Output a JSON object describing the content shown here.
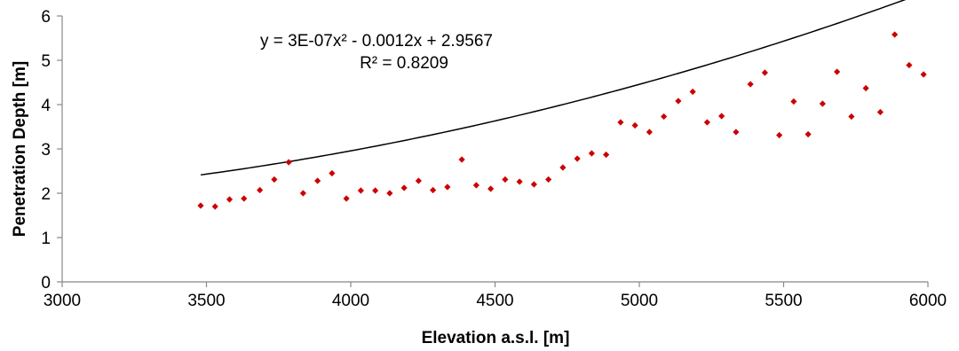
{
  "chart_data": {
    "type": "scatter",
    "xlabel": "Elevation a.s.l. [m]",
    "ylabel": "Penetration Depth [m]",
    "xlim": [
      3000,
      6000
    ],
    "ylim": [
      0,
      6
    ],
    "x_ticks": [
      "3000",
      "3500",
      "4000",
      "4500",
      "5000",
      "5500",
      "6000"
    ],
    "y_ticks": [
      "0",
      "1",
      "2",
      "3",
      "4",
      "5",
      "6"
    ],
    "grid": false,
    "legend": "none",
    "marker_color": "#cc0000",
    "trendline": {
      "type": "polynomial",
      "order": 2,
      "coefficients": [
        3e-07,
        -0.0012,
        2.9567
      ],
      "x_range": [
        3480,
        6000
      ],
      "color": "#000000",
      "equation_label": "y = 3E-07x² - 0.0012x + 2.9567",
      "r2_label": "R² = 0.8209"
    },
    "points": [
      {
        "x": 3480,
        "y": 1.72
      },
      {
        "x": 3530,
        "y": 1.7
      },
      {
        "x": 3580,
        "y": 1.86
      },
      {
        "x": 3630,
        "y": 1.88
      },
      {
        "x": 3685,
        "y": 2.07
      },
      {
        "x": 3735,
        "y": 2.31
      },
      {
        "x": 3785,
        "y": 2.7
      },
      {
        "x": 3835,
        "y": 2.0
      },
      {
        "x": 3885,
        "y": 2.28
      },
      {
        "x": 3935,
        "y": 2.45
      },
      {
        "x": 3985,
        "y": 1.88
      },
      {
        "x": 4035,
        "y": 2.06
      },
      {
        "x": 4085,
        "y": 2.06
      },
      {
        "x": 4135,
        "y": 2.0
      },
      {
        "x": 4185,
        "y": 2.12
      },
      {
        "x": 4235,
        "y": 2.28
      },
      {
        "x": 4285,
        "y": 2.07
      },
      {
        "x": 4335,
        "y": 2.14
      },
      {
        "x": 4385,
        "y": 2.76
      },
      {
        "x": 4435,
        "y": 2.18
      },
      {
        "x": 4485,
        "y": 2.1
      },
      {
        "x": 4535,
        "y": 2.31
      },
      {
        "x": 4585,
        "y": 2.26
      },
      {
        "x": 4635,
        "y": 2.2
      },
      {
        "x": 4685,
        "y": 2.31
      },
      {
        "x": 4735,
        "y": 2.58
      },
      {
        "x": 4785,
        "y": 2.78
      },
      {
        "x": 4835,
        "y": 2.9
      },
      {
        "x": 4885,
        "y": 2.87
      },
      {
        "x": 4935,
        "y": 3.6
      },
      {
        "x": 4985,
        "y": 3.53
      },
      {
        "x": 5035,
        "y": 3.38
      },
      {
        "x": 5085,
        "y": 3.73
      },
      {
        "x": 5135,
        "y": 4.08
      },
      {
        "x": 5185,
        "y": 4.29
      },
      {
        "x": 5235,
        "y": 3.6
      },
      {
        "x": 5285,
        "y": 3.74
      },
      {
        "x": 5335,
        "y": 3.38
      },
      {
        "x": 5385,
        "y": 4.46
      },
      {
        "x": 5435,
        "y": 4.72
      },
      {
        "x": 5485,
        "y": 3.31
      },
      {
        "x": 5535,
        "y": 4.07
      },
      {
        "x": 5585,
        "y": 3.33
      },
      {
        "x": 5635,
        "y": 4.02
      },
      {
        "x": 5685,
        "y": 4.74
      },
      {
        "x": 5735,
        "y": 3.73
      },
      {
        "x": 5785,
        "y": 4.37
      },
      {
        "x": 5835,
        "y": 3.83
      },
      {
        "x": 5885,
        "y": 5.58
      },
      {
        "x": 5935,
        "y": 4.89
      },
      {
        "x": 5985,
        "y": 4.68
      }
    ]
  }
}
